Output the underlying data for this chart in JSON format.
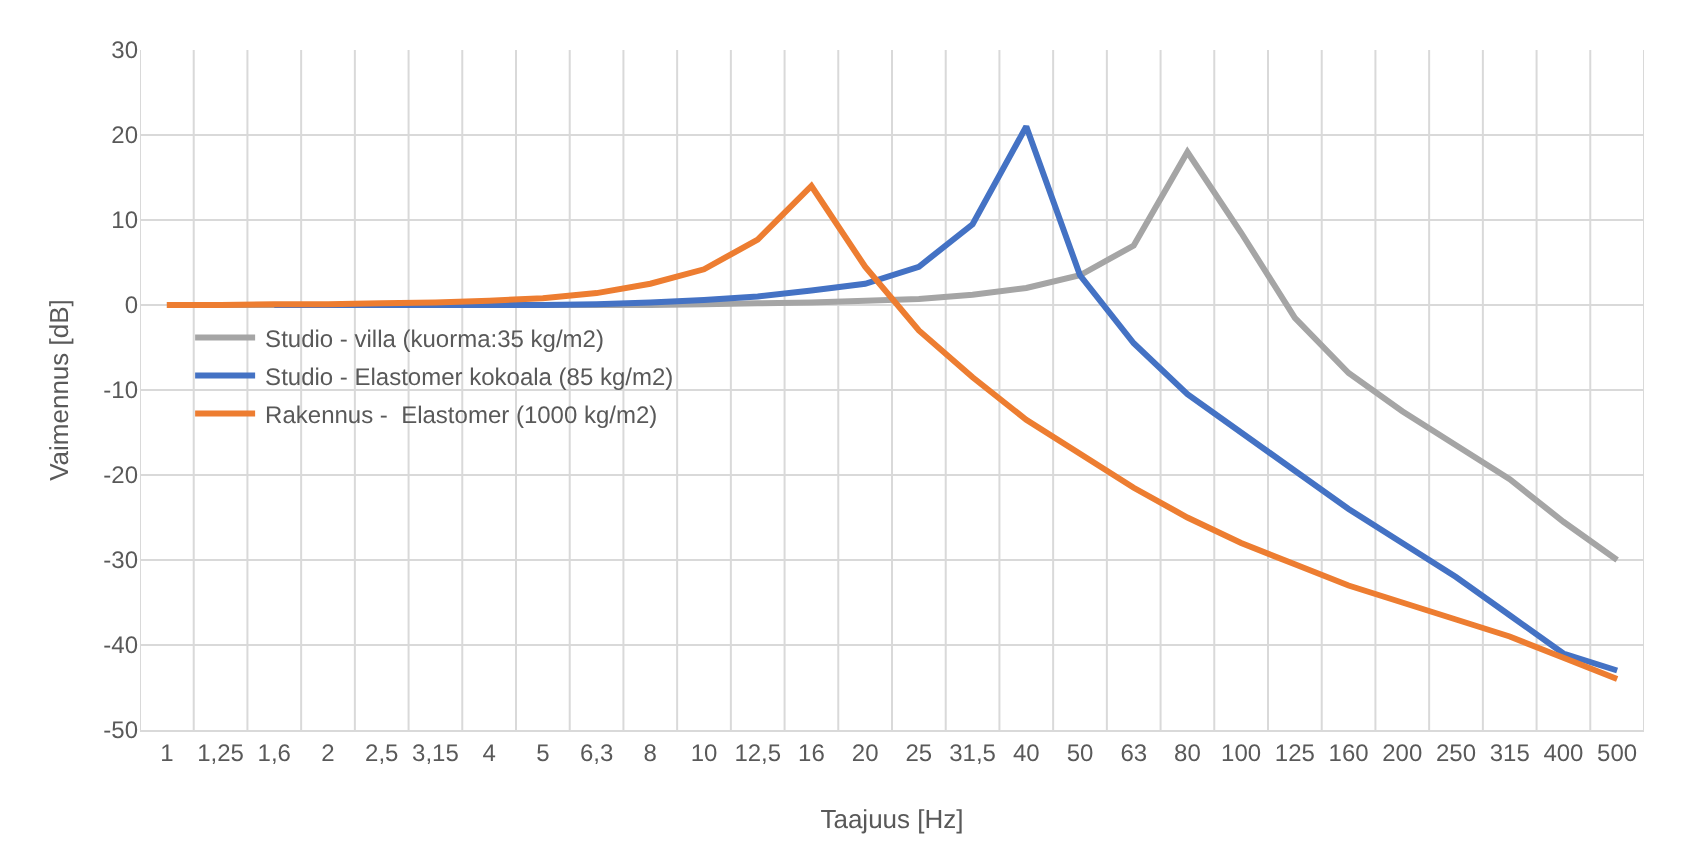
{
  "chart_data": {
    "type": "line",
    "xlabel": "Taajuus [Hz]",
    "ylabel": "Vaimennus [dB]",
    "categories": [
      "1",
      "1,25",
      "1,6",
      "2",
      "2,5",
      "3,15",
      "4",
      "5",
      "6,3",
      "8",
      "10",
      "12,5",
      "16",
      "20",
      "25",
      "31,5",
      "40",
      "50",
      "63",
      "80",
      "100",
      "125",
      "160",
      "200",
      "250",
      "315",
      "400",
      "500"
    ],
    "series": [
      {
        "name": "Studio - villa (kuorma:35 kg/m2)",
        "color": "#a5a5a5",
        "values": [
          0,
          0,
          0,
          0,
          0,
          0,
          0,
          0,
          0,
          0,
          0.1,
          0.2,
          0.3,
          0.5,
          0.7,
          1.2,
          2,
          3.5,
          7,
          18,
          8.5,
          -1.5,
          -8,
          -12.5,
          -16.5,
          -20.5,
          -25.5,
          -30
        ]
      },
      {
        "name": "Studio - Elastomer kokoala (85 kg/m2)",
        "color": "#4472c4",
        "values": [
          null,
          null,
          0,
          0,
          0,
          0,
          0,
          0,
          0.1,
          0.3,
          0.6,
          1,
          1.7,
          2.5,
          4.5,
          9.5,
          21,
          3.5,
          -4.5,
          -10.5,
          -15,
          -19.5,
          -24,
          -28,
          -32,
          -36.5,
          -41,
          -43
        ]
      },
      {
        "name": "Rakennus -  Elastomer (1000 kg/m2)",
        "color": "#ed7d31",
        "values": [
          0,
          0,
          0.1,
          0.1,
          0.2,
          0.3,
          0.5,
          0.8,
          1.4,
          2.5,
          4.2,
          7.7,
          14,
          4.5,
          -3,
          -8.5,
          -13.5,
          -17.5,
          -21.5,
          -25,
          -28,
          -30.5,
          -33,
          -35,
          -37,
          -39,
          -41.5,
          -44
        ]
      }
    ],
    "ylim": [
      -50,
      30
    ],
    "yticks": [
      -50,
      -40,
      -30,
      -20,
      -10,
      0,
      10,
      20,
      30
    ],
    "grid": true,
    "legend": "left",
    "marker": "none",
    "line_style": "solid"
  }
}
